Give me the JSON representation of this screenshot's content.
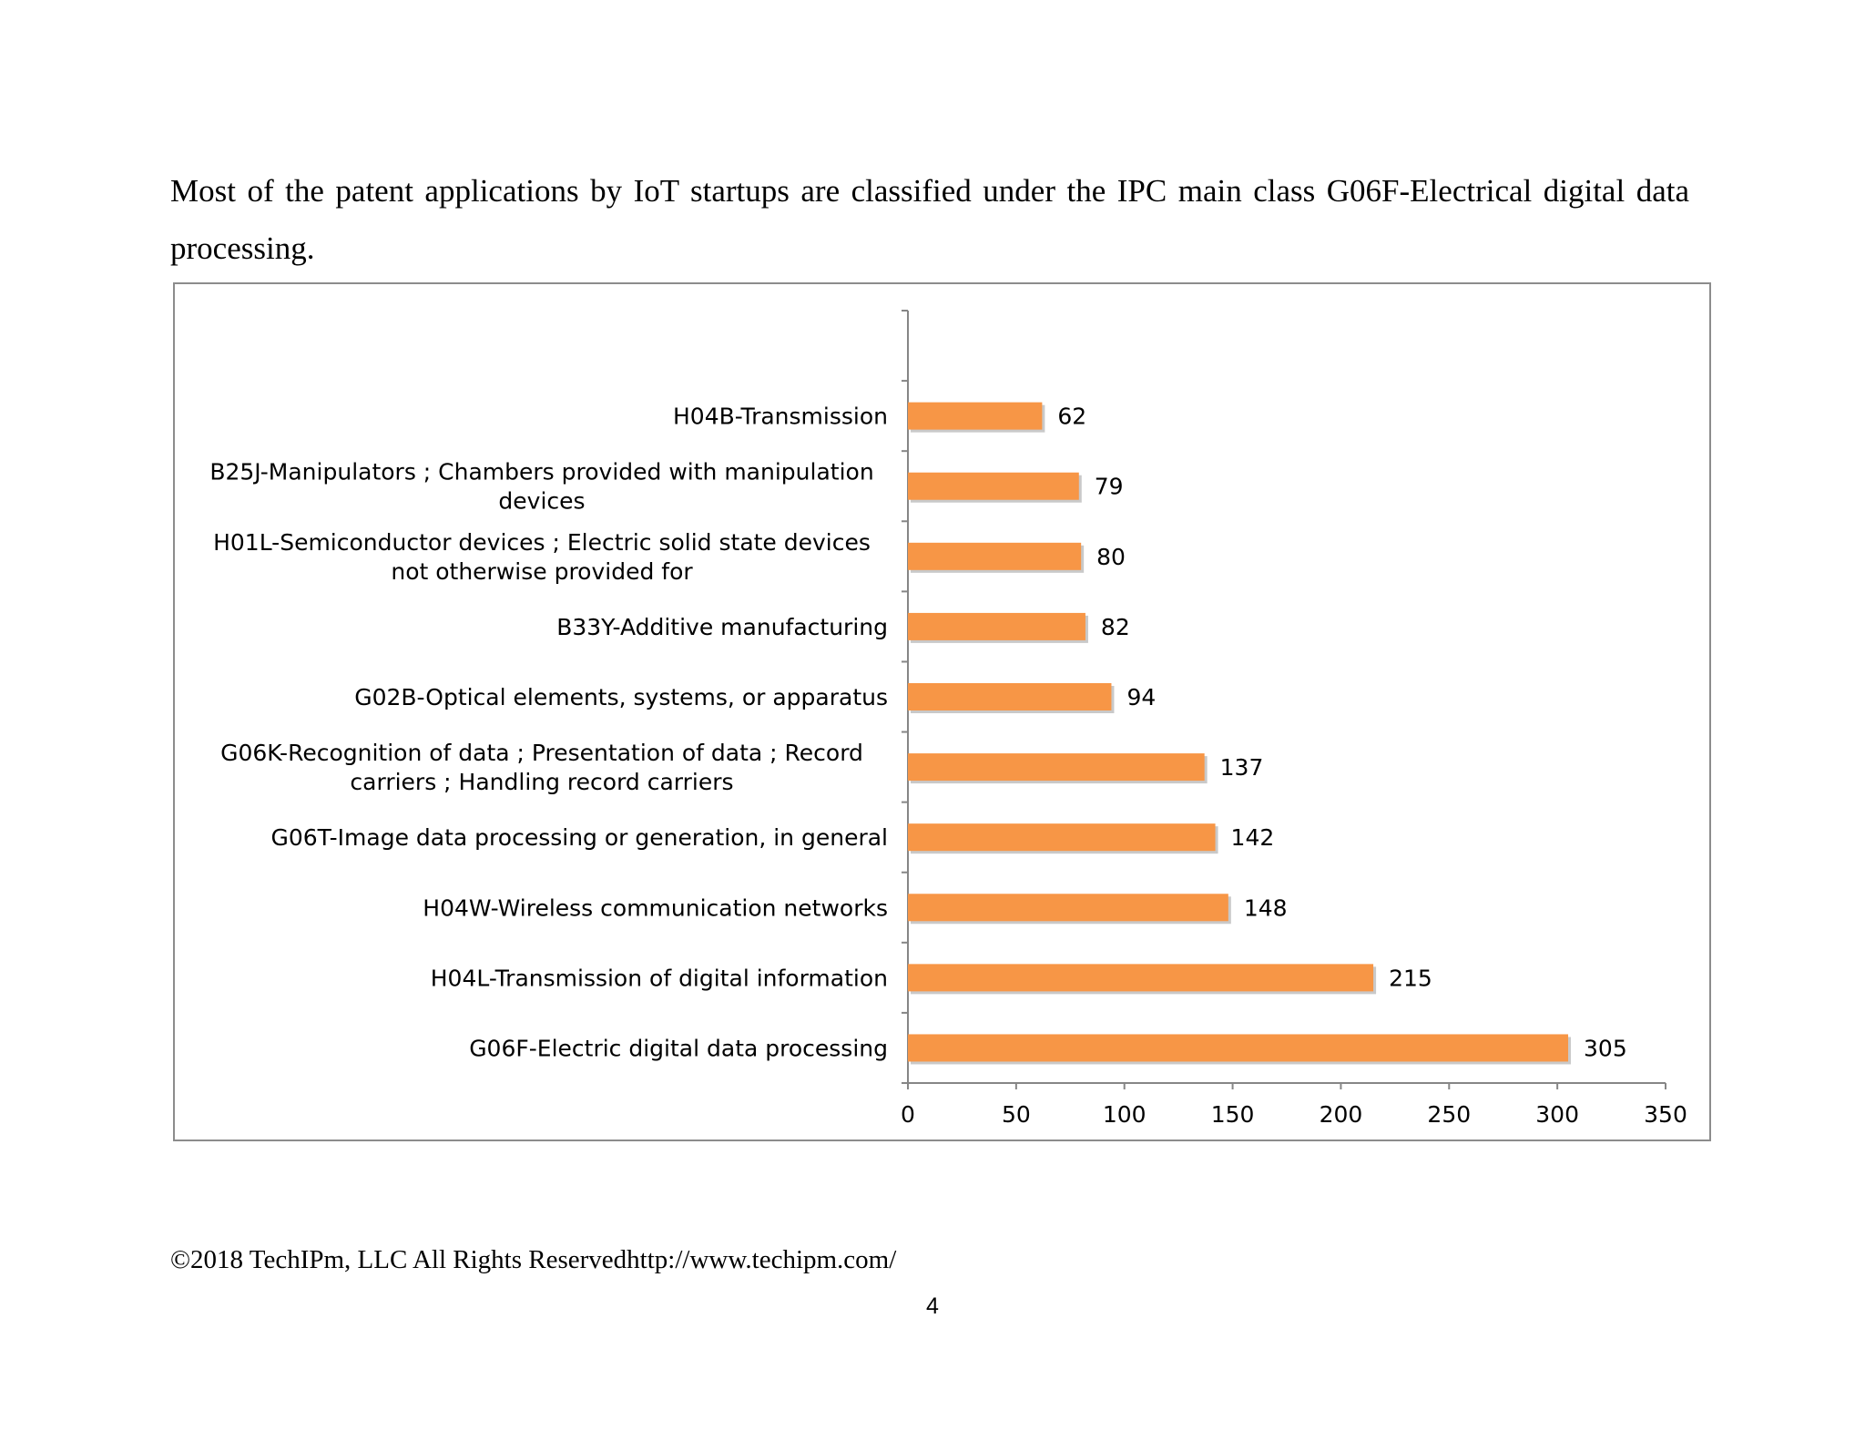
{
  "document": {
    "intro_text": "Most of the patent applications by IoT startups are classified under the IPC main class G06F-Electrical digital data processing.",
    "footer_text": "©2018 TechIPm, LLC All Rights Reservedhttp://www.techipm.com/",
    "page_number": "4"
  },
  "chart_data": {
    "type": "bar",
    "orientation": "horizontal",
    "categories": [
      "G06F-Electric digital data processing",
      "H04L-Transmission of digital information",
      "H04W-Wireless communication networks",
      "G06T-Image data processing or generation, in general",
      "G06K-Recognition of data ; Presentation of data ; Record carriers ; Handling record carriers",
      "G02B-Optical elements, systems, or apparatus",
      "B33Y-Additive manufacturing",
      "H01L-Semiconductor devices ; Electric solid state devices not otherwise provided for",
      "B25J-Manipulators ; Chambers provided with manipulation devices",
      "H04B-Transmission"
    ],
    "category_lines": [
      [
        "G06F-Electric digital data processing"
      ],
      [
        "H04L-Transmission of digital information"
      ],
      [
        "H04W-Wireless communication networks"
      ],
      [
        "G06T-Image data processing or generation, in general"
      ],
      [
        "G06K-Recognition of data ; Presentation of data ; Record",
        "carriers ; Handling record carriers"
      ],
      [
        "G02B-Optical elements, systems, or apparatus"
      ],
      [
        "B33Y-Additive manufacturing"
      ],
      [
        "H01L-Semiconductor devices ; Electric solid state devices",
        "not otherwise provided for"
      ],
      [
        "B25J-Manipulators ; Chambers provided with manipulation",
        "devices"
      ],
      [
        "H04B-Transmission"
      ]
    ],
    "values": [
      305,
      215,
      148,
      142,
      137,
      94,
      82,
      80,
      79,
      62
    ],
    "data_labels": [
      "305",
      "215",
      "148",
      "142",
      "137",
      "94",
      "82",
      "80",
      "79",
      "62"
    ],
    "xlim": [
      0,
      350
    ],
    "xticks": [
      0,
      50,
      100,
      150,
      200,
      250,
      300,
      350
    ],
    "xtick_labels": [
      "0",
      "50",
      "100",
      "150",
      "200",
      "250",
      "300",
      "350"
    ],
    "category_slots": 11,
    "bar_color": "#f79646",
    "grid": false,
    "legend": "none"
  }
}
